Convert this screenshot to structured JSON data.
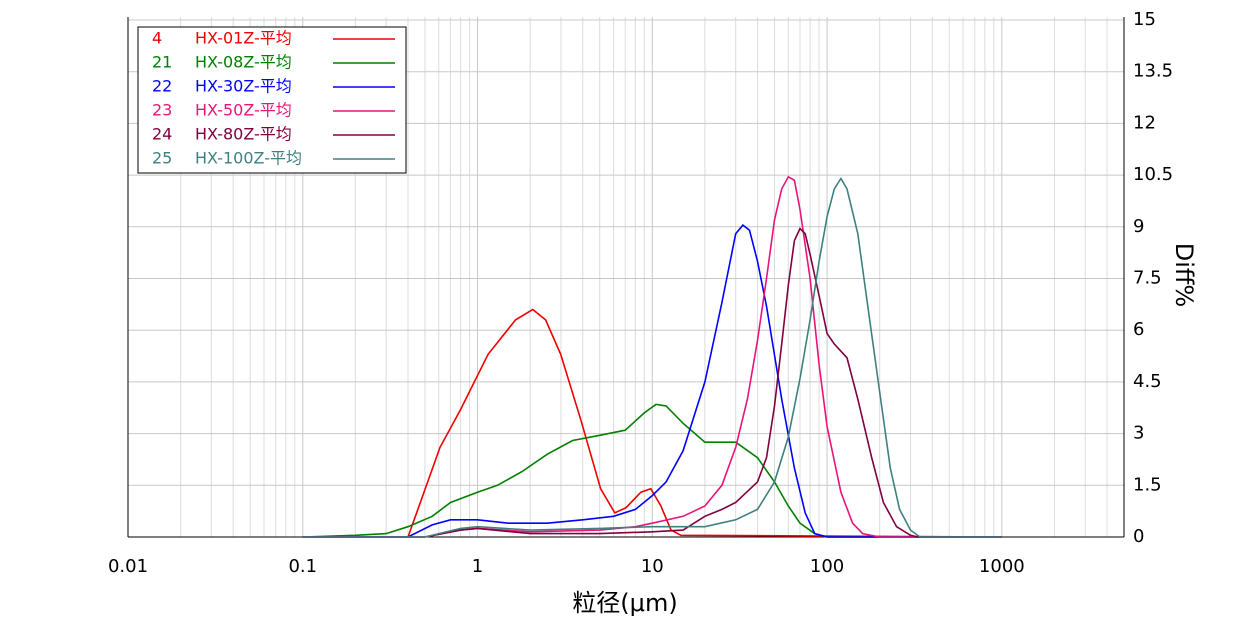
{
  "chart_data": {
    "type": "line",
    "x_label": "粒径(μm)",
    "y_label": "Diff%",
    "xscale": "log",
    "xlim": [
      0.01,
      5000
    ],
    "xticks": [
      0.01,
      0.1,
      1,
      10,
      100,
      1000
    ],
    "ylim": [
      0,
      15
    ],
    "yticks": [
      0,
      1.5,
      3,
      4.5,
      6,
      7.5,
      9,
      10.5,
      12,
      13.5,
      15
    ],
    "y_axis_side": "right",
    "grid": true,
    "minor_grid": true,
    "legend": "upper left",
    "series": [
      {
        "id": "4",
        "name": "HX-01Z-平均",
        "color": "#ee0000",
        "x": [
          0.1,
          0.4,
          0.61,
          0.8,
          1.15,
          1.65,
          2.07,
          2.45,
          2.99,
          3.9,
          5.06,
          6.1,
          7.07,
          8.6,
          9.8,
          11.2,
          12.8,
          14.6,
          1000
        ],
        "values": [
          0,
          0,
          2.6,
          3.7,
          5.3,
          6.3,
          6.6,
          6.3,
          5.3,
          3.4,
          1.4,
          0.7,
          0.85,
          1.3,
          1.4,
          0.9,
          0.2,
          0.05,
          0
        ]
      },
      {
        "id": "21",
        "name": "HX-08Z-平均",
        "color": "#008000",
        "x": [
          0.1,
          0.2,
          0.3,
          0.4,
          0.55,
          0.7,
          1.0,
          1.3,
          1.8,
          2.5,
          3.5,
          5,
          7,
          9,
          10.5,
          12,
          15,
          20,
          25,
          30,
          40,
          50,
          60,
          70,
          85,
          100,
          1000
        ],
        "values": [
          0,
          0.05,
          0.1,
          0.3,
          0.6,
          1.0,
          1.3,
          1.5,
          1.9,
          2.4,
          2.8,
          2.95,
          3.1,
          3.6,
          3.85,
          3.8,
          3.3,
          2.75,
          2.75,
          2.75,
          2.3,
          1.6,
          0.9,
          0.4,
          0.1,
          0,
          0
        ]
      },
      {
        "id": "22",
        "name": "HX-30Z-平均",
        "color": "#0000ff",
        "x": [
          0.1,
          0.4,
          0.55,
          0.7,
          1.0,
          1.5,
          2.5,
          4,
          6,
          8,
          10,
          12,
          15,
          20,
          25,
          30,
          33,
          36,
          40,
          45,
          55,
          65,
          75,
          85,
          100,
          1000
        ],
        "values": [
          0,
          0,
          0.35,
          0.5,
          0.5,
          0.4,
          0.4,
          0.5,
          0.6,
          0.8,
          1.2,
          1.6,
          2.5,
          4.5,
          6.8,
          8.8,
          9.05,
          8.9,
          8.0,
          6.7,
          4.0,
          2.0,
          0.7,
          0.1,
          0,
          0
        ]
      },
      {
        "id": "23",
        "name": "HX-50Z-平均",
        "color": "#e8147a",
        "x": [
          0.1,
          0.5,
          0.8,
          1,
          2,
          5,
          8,
          10,
          15,
          20,
          25,
          30,
          35,
          40,
          45,
          50,
          55,
          60,
          65,
          70,
          80,
          90,
          100,
          120,
          140,
          160,
          200,
          1000
        ],
        "values": [
          0,
          0,
          0.2,
          0.25,
          0.15,
          0.2,
          0.3,
          0.4,
          0.6,
          0.9,
          1.5,
          2.6,
          4.0,
          5.7,
          7.5,
          9.2,
          10.1,
          10.45,
          10.35,
          9.5,
          7.5,
          5.0,
          3.2,
          1.3,
          0.4,
          0.1,
          0,
          0
        ]
      },
      {
        "id": "24",
        "name": "HX-80Z-平均",
        "color": "#800040",
        "x": [
          0.1,
          0.5,
          0.8,
          1,
          2,
          5,
          10,
          15,
          20,
          25,
          30,
          40,
          45,
          50,
          55,
          60,
          65,
          70,
          75,
          80,
          90,
          100,
          110,
          130,
          150,
          180,
          210,
          250,
          300,
          330,
          1000
        ],
        "values": [
          0,
          0,
          0.2,
          0.25,
          0.1,
          0.1,
          0.15,
          0.2,
          0.6,
          0.8,
          1.0,
          1.6,
          2.3,
          3.8,
          5.6,
          7.3,
          8.6,
          8.95,
          8.8,
          8.2,
          7.0,
          5.9,
          5.6,
          5.2,
          4.0,
          2.3,
          1.0,
          0.3,
          0.05,
          0,
          0
        ]
      },
      {
        "id": "25",
        "name": "HX-100Z-平均",
        "color": "#408080",
        "x": [
          0.1,
          0.5,
          0.8,
          1,
          2,
          5,
          10,
          20,
          30,
          40,
          50,
          60,
          70,
          80,
          90,
          100,
          110,
          120,
          130,
          150,
          170,
          200,
          230,
          260,
          300,
          340,
          1000
        ],
        "values": [
          0,
          0,
          0.25,
          0.3,
          0.2,
          0.25,
          0.3,
          0.3,
          0.5,
          0.8,
          1.6,
          2.9,
          4.6,
          6.3,
          8.0,
          9.3,
          10.1,
          10.4,
          10.1,
          8.8,
          6.8,
          4.2,
          2.0,
          0.8,
          0.2,
          0,
          0
        ]
      }
    ]
  }
}
